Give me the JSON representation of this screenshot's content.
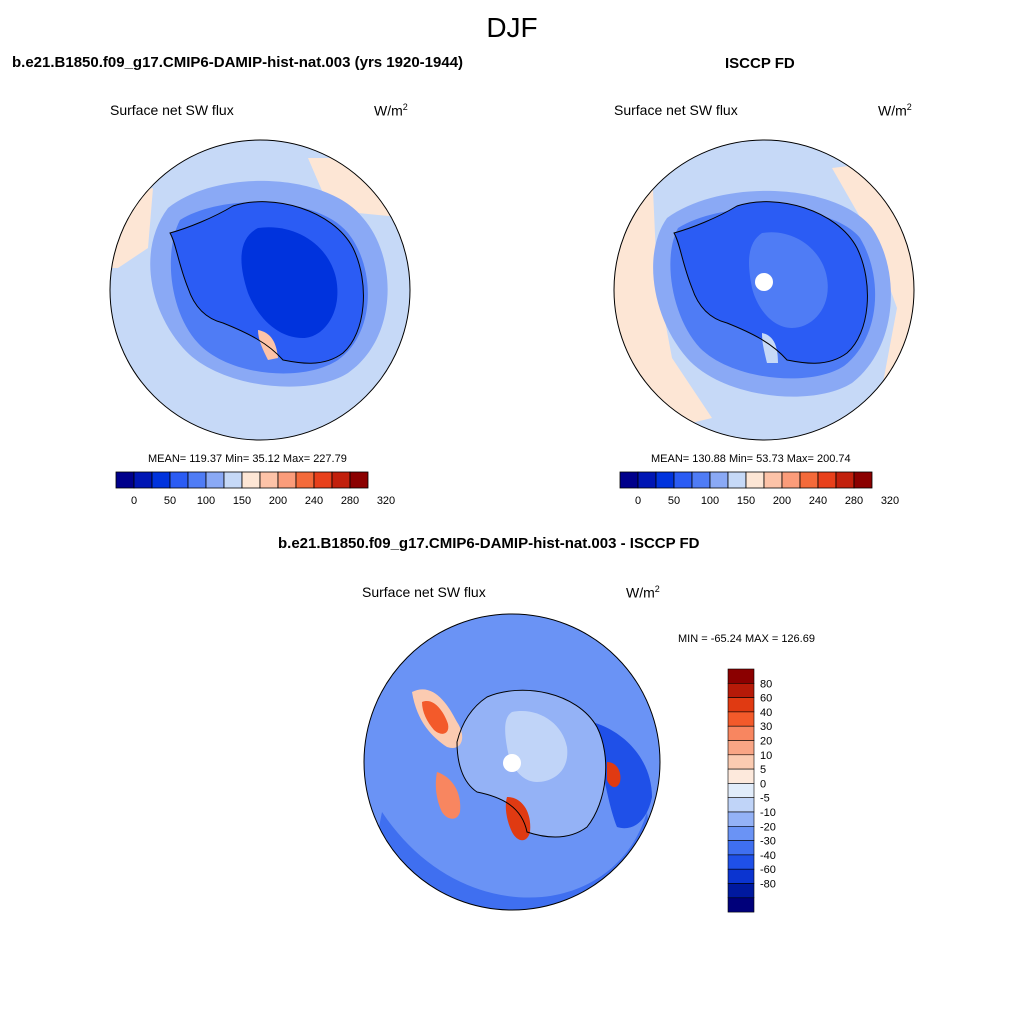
{
  "figure": {
    "season": "DJF",
    "diff_title": "b.e21.B1850.f09_g17.CMIP6-DAMIP-hist-nat.003 - ISCCP FD"
  },
  "panels": {
    "model": {
      "title": "b.e21.B1850.f09_g17.CMIP6-DAMIP-hist-nat.003 (yrs 1920-1944)",
      "variable": "Surface net SW flux",
      "units_base": "W/m",
      "units_exp": "2",
      "stats": "MEAN= 119.37  Min=  35.12  Max= 227.79"
    },
    "obs": {
      "title": "ISCCP FD",
      "variable": "Surface net SW flux",
      "units_base": "W/m",
      "units_exp": "2",
      "stats": "MEAN= 130.88  Min=  53.73  Max= 200.74"
    },
    "diff": {
      "variable": "Surface net SW flux",
      "units_base": "W/m",
      "units_exp": "2",
      "stats": "MIN = -65.24 MAX = 126.69"
    }
  },
  "colorbars": {
    "abs_colors": [
      "#00008b",
      "#0016b4",
      "#0033dd",
      "#2b5cf4",
      "#4f7cf5",
      "#8aa9f5",
      "#c6d9f7",
      "#fde6d5",
      "#fdc3a8",
      "#fb9c7a",
      "#f46a3a",
      "#e8401b",
      "#c2200c",
      "#8b0000"
    ],
    "abs_labels": [
      "0",
      "50",
      "100",
      "150",
      "200",
      "240",
      "280",
      "320"
    ],
    "diff_colors": [
      "#8b0000",
      "#b61a08",
      "#e03a12",
      "#f35a2a",
      "#f88660",
      "#f9a585",
      "#fbcbb1",
      "#fde9dc",
      "#e1ecfa",
      "#c0d4f8",
      "#94b2f6",
      "#6a93f5",
      "#3f6ff0",
      "#1f50e8",
      "#0b34d0",
      "#00199f",
      "#00007a"
    ],
    "diff_labels": [
      "80",
      "60",
      "40",
      "30",
      "20",
      "10",
      "5",
      "0",
      "-5",
      "-10",
      "-20",
      "-30",
      "-40",
      "-60",
      "-80"
    ]
  }
}
